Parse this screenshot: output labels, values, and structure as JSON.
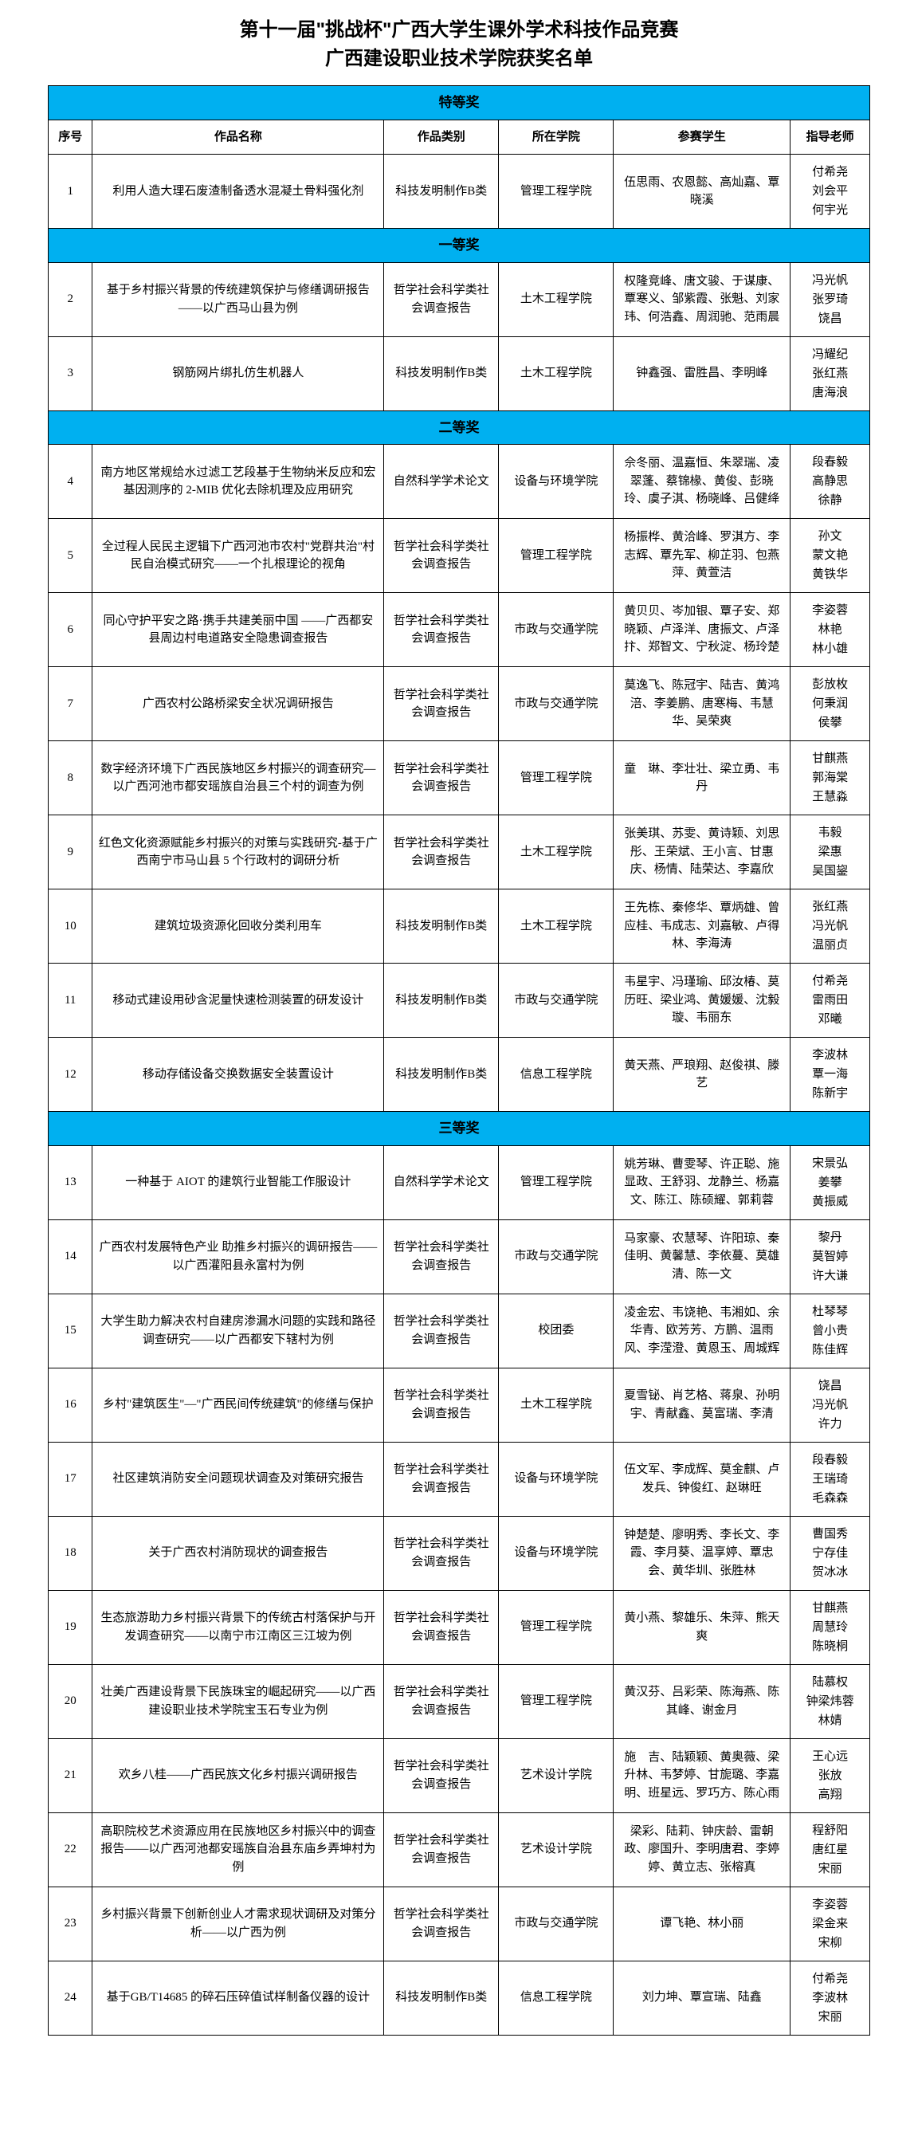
{
  "title_line1": "第十一届\"挑战杯\"广西大学生课外学术科技作品竞赛",
  "title_line2": "广西建设职业技术学院获奖名单",
  "colors": {
    "section_bg": "#00b0f0",
    "border": "#000000",
    "background": "#ffffff"
  },
  "headers": {
    "num": "序号",
    "name": "作品名称",
    "type": "作品类别",
    "school": "所在学院",
    "students": "参赛学生",
    "teachers": "指导老师"
  },
  "sections": [
    {
      "label": "特等奖",
      "show_headers": true,
      "rows": [
        {
          "num": "1",
          "name": "利用人造大理石废渣制备透水混凝土骨料强化剂",
          "type": "科技发明制作B类",
          "school": "管理工程学院",
          "students": "伍思雨、农恩懿、高灿嘉、覃晓溪",
          "teachers": "付希尧\n刘会平\n何宇光"
        }
      ]
    },
    {
      "label": "一等奖",
      "show_headers": false,
      "rows": [
        {
          "num": "2",
          "name": "基于乡村振兴背景的传统建筑保护与修缮调研报告——以广西马山县为例",
          "type": "哲学社会科学类社会调查报告",
          "school": "土木工程学院",
          "students": "权隆竞峰、唐文骏、于谋康、覃寒义、邹紫霞、张魁、刘家玮、何浩鑫、周润驰、范雨晨",
          "teachers": "冯光帆\n张罗琦\n饶昌"
        },
        {
          "num": "3",
          "name": "钢筋网片绑扎仿生机器人",
          "type": "科技发明制作B类",
          "school": "土木工程学院",
          "students": "钟鑫强、雷胜昌、李明峰",
          "teachers": "冯耀纪\n张红燕\n唐海浪"
        }
      ]
    },
    {
      "label": "二等奖",
      "show_headers": false,
      "rows": [
        {
          "num": "4",
          "name": "南方地区常规给水过滤工艺段基于生物纳米反应和宏基因测序的 2-MIB 优化去除机理及应用研究",
          "type": "自然科学学术论文",
          "school": "设备与环境学院",
          "students": "佘冬丽、温嘉恒、朱翠瑞、凌翠蓬、蔡锦椽、黄俊、彭晓玲、虞子淇、杨晓峰、吕健绛",
          "teachers": "段春毅\n高静思\n徐静"
        },
        {
          "num": "5",
          "name": "全过程人民民主逻辑下广西河池市农村\"党群共治\"村民自治模式研究——一个扎根理论的视角",
          "type": "哲学社会科学类社会调查报告",
          "school": "管理工程学院",
          "students": "杨振桦、黄洽峰、罗淇方、李志辉、覃先军、柳芷羽、包燕萍、黄萱洁",
          "teachers": "孙文\n蒙文艳\n黄铁华"
        },
        {
          "num": "6",
          "name": "同心守护平安之路·携手共建美丽中国 ——广西都安县周边村电道路安全隐患调查报告",
          "type": "哲学社会科学类社会调查报告",
          "school": "市政与交通学院",
          "students": "黄贝贝、岑加银、覃子安、郑晓颖、卢泽洋、唐振文、卢泽抃、郑智文、宁秋淀、杨玲楚",
          "teachers": "李姿蓉\n林艳\n林小雄"
        },
        {
          "num": "7",
          "name": "广西农村公路桥梁安全状况调研报告",
          "type": "哲学社会科学类社会调查报告",
          "school": "市政与交通学院",
          "students": "莫逸飞、陈冠宇、陆吉、黄鸿涪、李姜鹏、唐寒梅、韦慧华、吴荣爽",
          "teachers": "彭放枚\n何秉润\n侯攀"
        },
        {
          "num": "8",
          "name": "数字经济环境下广西民族地区乡村振兴的调查研究—以广西河池市都安瑶族自治县三个村的调查为例",
          "type": "哲学社会科学类社会调查报告",
          "school": "管理工程学院",
          "students": "童　琳、李壮壮、梁立勇、韦丹",
          "teachers": "甘麒燕\n郭海棠\n王慧淼"
        },
        {
          "num": "9",
          "name": "红色文化资源赋能乡村振兴的对策与实践研究-基于广西南宁市马山县 5 个行政村的调研分析",
          "type": "哲学社会科学类社会调查报告",
          "school": "土木工程学院",
          "students": "张美琪、苏雯、黄诗颖、刘思彤、王荣斌、王小言、甘惠庆、杨情、陆荣达、李嘉欣",
          "teachers": "韦毅\n梁惠\n吴国鋆"
        },
        {
          "num": "10",
          "name": "建筑垃圾资源化回收分类利用车",
          "type": "科技发明制作B类",
          "school": "土木工程学院",
          "students": "王先栋、秦修华、覃炳雄、曾应桂、韦成志、刘嘉敏、卢得林、李海涛",
          "teachers": "张红燕\n冯光帆\n温丽贞"
        },
        {
          "num": "11",
          "name": "移动式建设用砂含泥量快速检测装置的研发设计",
          "type": "科技发明制作B类",
          "school": "市政与交通学院",
          "students": "韦星宇、冯瑾瑜、邱汝椿、莫历旺、梁业鸿、黄媛媛、沈毅璇、韦丽东",
          "teachers": "付希尧\n雷雨田\n邓曦"
        },
        {
          "num": "12",
          "name": "移动存储设备交换数据安全装置设计",
          "type": "科技发明制作B类",
          "school": "信息工程学院",
          "students": "黄天燕、严琅翔、赵俊祺、滕艺",
          "teachers": "李波林\n覃一海\n陈新宇"
        }
      ]
    },
    {
      "label": "三等奖",
      "show_headers": false,
      "rows": [
        {
          "num": "13",
          "name": "一种基于 AIOT 的建筑行业智能工作服设计",
          "type": "自然科学学术论文",
          "school": "管理工程学院",
          "students": "姚芳琳、曹雯琴、许正聪、施显政、王舒羽、龙静兰、杨嘉文、陈江、陈硕耀、郭莉蓉",
          "teachers": "宋景弘\n姜攀\n黄振威"
        },
        {
          "num": "14",
          "name": "广西农村发展特色产业\n助推乡村振兴的调研报告——以广西灌阳县永富村为例",
          "type": "哲学社会科学类社会调查报告",
          "school": "市政与交通学院",
          "students": "马家豪、农慧琴、许阳琼、秦佳明、黄馨慧、李依蔓、莫雄清、陈一文",
          "teachers": "黎丹\n莫智婷\n许大谦"
        },
        {
          "num": "15",
          "name": "大学生助力解决农村自建房渗漏水问题的实践和路径调查研究——以广西都安下辖村为例",
          "type": "哲学社会科学类社会调查报告",
          "school": "校团委",
          "students": "凌金宏、韦饶艳、韦湘如、余华青、欧芳芳、方鹏、温雨风、李滢澄、黄恩玉、周城辉",
          "teachers": "杜琴琴\n曾小贵\n陈佳辉"
        },
        {
          "num": "16",
          "name": "乡村\"建筑医生\"—\"广西民间传统建筑\"的修缮与保护",
          "type": "哲学社会科学类社会调查报告",
          "school": "土木工程学院",
          "students": "夏雪铋、肖艺格、蒋泉、孙明宇、青献鑫、莫富瑞、李清",
          "teachers": "饶昌\n冯光帆\n许力"
        },
        {
          "num": "17",
          "name": "社区建筑消防安全问题现状调查及对策研究报告",
          "type": "哲学社会科学类社会调查报告",
          "school": "设备与环境学院",
          "students": "伍文军、李成辉、莫金麒、卢发兵、钟俊红、赵琳旺",
          "teachers": "段春毅\n王瑞琦\n毛森森"
        },
        {
          "num": "18",
          "name": "关于广西农村消防现状的调查报告",
          "type": "哲学社会科学类社会调查报告",
          "school": "设备与环境学院",
          "students": "钟楚楚、廖明秀、李长文、李霞、李月葵、温享婷、覃忠会、黄华圳、张胜林",
          "teachers": "曹国秀\n宁存佳\n贺冰冰"
        },
        {
          "num": "19",
          "name": "生态旅游助力乡村振兴背景下的传统古村落保护与开发调查研究——以南宁市江南区三江坡为例",
          "type": "哲学社会科学类社会调查报告",
          "school": "管理工程学院",
          "students": "黄小燕、黎雄乐、朱萍、熊天爽",
          "teachers": "甘麒燕\n周慧玲\n陈晓桐"
        },
        {
          "num": "20",
          "name": "壮美广西建设背景下民族珠宝的崛起研究——以广西建设职业技术学院宝玉石专业为例",
          "type": "哲学社会科学类社会调查报告",
          "school": "管理工程学院",
          "students": "黄汉芬、吕彩荣、陈海燕、陈其峰、谢金月",
          "teachers": "陆慕权\n钟梁炜蓉\n林婧"
        },
        {
          "num": "21",
          "name": "欢乡八桂——广西民族文化乡村振兴调研报告",
          "type": "哲学社会科学类社会调查报告",
          "school": "艺术设计学院",
          "students": "施　吉、陆颖颖、黄奥薇、梁升林、韦梦婷、甘旎璐、李嘉明、班星远、罗巧方、陈心雨",
          "teachers": "王心远\n张放\n高翔"
        },
        {
          "num": "22",
          "name": "高职院校艺术资源应用在民族地区乡村振兴中的调查报告——以广西河池都安瑶族自治县东庙乡弄坤村为例",
          "type": "哲学社会科学类社会调查报告",
          "school": "艺术设计学院",
          "students": "梁彩、陆莉、钟庆龄、雷朝政、廖国升、李明唐君、李婷婷、黄立志、张榕真",
          "teachers": "程舒阳\n唐红星\n宋丽"
        },
        {
          "num": "23",
          "name": "乡村振兴背景下创新创业人才需求现状调研及对策分析——以广西为例",
          "type": "哲学社会科学类社会调查报告",
          "school": "市政与交通学院",
          "students": "谭飞艳、林小丽",
          "teachers": "李姿蓉\n梁金来\n宋柳"
        },
        {
          "num": "24",
          "name": "基于GB/T14685 的碎石压碎值试样制备仪器的设计",
          "type": "科技发明制作B类",
          "school": "信息工程学院",
          "students": "刘力坤、覃宣瑞、陆鑫",
          "teachers": "付希尧\n李波林\n宋丽"
        }
      ]
    }
  ]
}
